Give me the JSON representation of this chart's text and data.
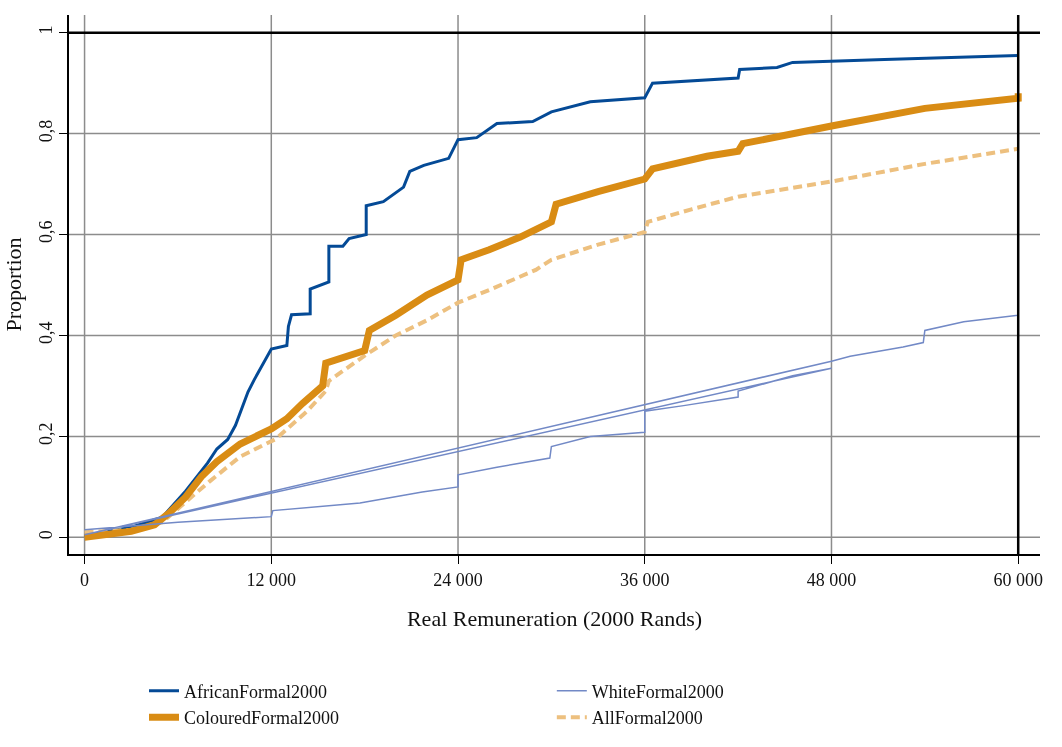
{
  "chart_data": {
    "type": "line",
    "xlabel": "Real Remuneration (2000 Rands)",
    "ylabel": "Proportion",
    "xlim": [
      -1000,
      61400
    ],
    "ylim": [
      -0.033,
      1.035
    ],
    "xticks": [
      {
        "value": 0,
        "label": "0"
      },
      {
        "value": 12000,
        "label": "12 000"
      },
      {
        "value": 24000,
        "label": "24 000"
      },
      {
        "value": 36000,
        "label": "36 000"
      },
      {
        "value": 48000,
        "label": "48 000"
      },
      {
        "value": 60000,
        "label": "60 000"
      }
    ],
    "yticks": [
      {
        "value": 0,
        "label": "0"
      },
      {
        "value": 0.2,
        "label": "0,2"
      },
      {
        "value": 0.4,
        "label": "0,4"
      },
      {
        "value": 0.6,
        "label": "0,6"
      },
      {
        "value": 0.8,
        "label": "0,8"
      },
      {
        "value": 1,
        "label": "1"
      }
    ],
    "grid": true,
    "legend": "bottom",
    "marker": "none",
    "series": [
      {
        "name": "AfricanFormal2000",
        "color": "#044a96",
        "line_style": "solid",
        "x": [
          0,
          3000,
          5000,
          6500,
          7900,
          8500,
          9200,
          9700,
          10500,
          10900,
          12000,
          13000,
          13100,
          13300,
          14500,
          14500,
          15700,
          15700,
          16600,
          17000,
          18100,
          18100,
          19200,
          20500,
          20900,
          21800,
          23400,
          24000,
          25200,
          26500,
          28800,
          30000,
          32500,
          36000,
          36500,
          42000,
          42100,
          44500,
          45500,
          51400,
          60000
        ],
        "values": [
          0.003,
          0.02,
          0.04,
          0.092,
          0.147,
          0.175,
          0.194,
          0.222,
          0.288,
          0.312,
          0.373,
          0.38,
          0.418,
          0.441,
          0.443,
          0.492,
          0.506,
          0.577,
          0.577,
          0.592,
          0.6,
          0.657,
          0.665,
          0.694,
          0.725,
          0.737,
          0.751,
          0.788,
          0.792,
          0.82,
          0.824,
          0.843,
          0.863,
          0.871,
          0.9,
          0.91,
          0.927,
          0.931,
          0.941,
          0.947,
          0.955
        ]
      },
      {
        "name": "WhiteFormal2000",
        "color": "#7289c6",
        "line_style": "solid",
        "x": [
          0,
          6000,
          12000,
          12100,
          17700,
          21700,
          24000,
          24000,
          26500,
          29900,
          30000,
          32500,
          36000,
          36000,
          38500,
          42000,
          42000,
          45500,
          48000,
          0,
          48000,
          49200,
          52600,
          53900,
          54000,
          56500,
          60000,
          60000
        ],
        "values": [
          0.015,
          0.03,
          0.041,
          0.053,
          0.068,
          0.09,
          0.1,
          0.124,
          0.139,
          0.157,
          0.18,
          0.2,
          0.208,
          0.25,
          0.261,
          0.278,
          0.29,
          0.32,
          0.335,
          0.005,
          0.349,
          0.359,
          0.377,
          0.386,
          0.41,
          0.427,
          0.44,
          0.465
        ]
      },
      {
        "name": "ColouredFormal2000",
        "color": "#d98c14",
        "line_style": "solid",
        "x": [
          0,
          3000,
          4500,
          5500,
          6500,
          7500,
          8500,
          10000,
          12000,
          13000,
          14000,
          15300,
          15500,
          18000,
          18300,
          20000,
          22000,
          24000,
          24200,
          26000,
          28000,
          30000,
          30300,
          33000,
          36000,
          36500,
          40000,
          42000,
          42300,
          48000,
          54000,
          60000,
          60000
        ],
        "values": [
          0.0,
          0.012,
          0.025,
          0.05,
          0.08,
          0.12,
          0.15,
          0.185,
          0.215,
          0.235,
          0.265,
          0.3,
          0.345,
          0.37,
          0.41,
          0.44,
          0.48,
          0.51,
          0.55,
          0.57,
          0.595,
          0.625,
          0.66,
          0.685,
          0.71,
          0.73,
          0.755,
          0.765,
          0.78,
          0.815,
          0.85,
          0.87,
          0.88
        ]
      },
      {
        "name": "AllFormal2000",
        "color": "#edc07f",
        "line_style": "dashed",
        "x": [
          0,
          3000,
          5000,
          6500,
          8000,
          10000,
          12300,
          14300,
          15500,
          15700,
          18000,
          20000,
          22000,
          24000,
          26000,
          29000,
          30000,
          33000,
          36000,
          36200,
          39000,
          42000,
          48000,
          54000,
          60000
        ],
        "values": [
          0.01,
          0.015,
          0.03,
          0.07,
          0.11,
          0.16,
          0.195,
          0.25,
          0.29,
          0.31,
          0.36,
          0.4,
          0.43,
          0.465,
          0.49,
          0.53,
          0.55,
          0.58,
          0.605,
          0.625,
          0.65,
          0.675,
          0.705,
          0.74,
          0.77
        ]
      }
    ]
  }
}
